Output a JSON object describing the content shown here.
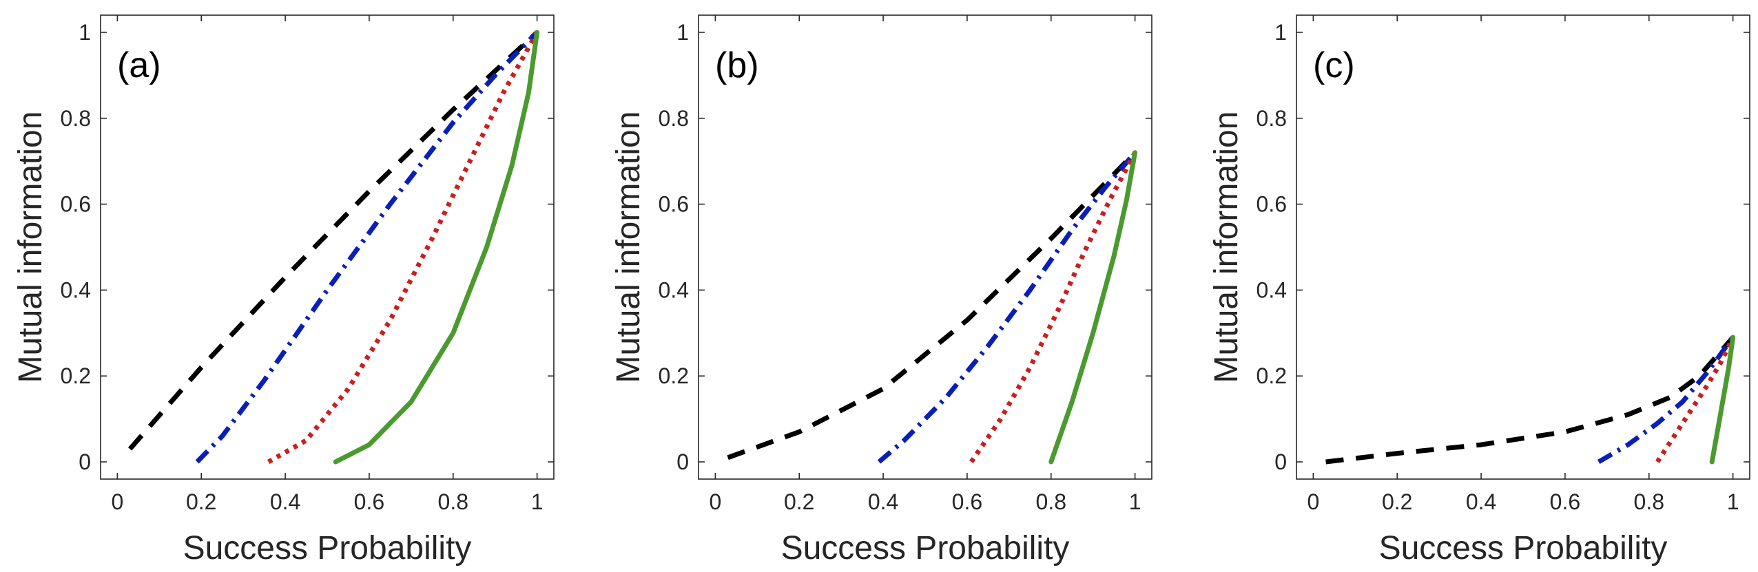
{
  "chart_data": [
    {
      "type": "line",
      "panel_label": "(a)",
      "xlabel": "Success Probability",
      "ylabel": "Mutual information",
      "xlim": [
        -0.04,
        1.04
      ],
      "ylim": [
        -0.04,
        1.04
      ],
      "xticks": [
        0,
        0.2,
        0.4,
        0.6,
        0.8,
        1
      ],
      "xtick_labels": [
        "0",
        "0.2",
        "0.4",
        "0.6",
        "0.8",
        "1"
      ],
      "yticks": [
        0,
        0.2,
        0.4,
        0.6,
        0.8,
        1
      ],
      "ytick_labels": [
        "0",
        "0.2",
        "0.4",
        "0.6",
        "0.8",
        "1"
      ],
      "series": [
        {
          "name": "black-dashed",
          "color": "#000000",
          "style": "dashed",
          "x": [
            0.03,
            0.2,
            0.4,
            0.6,
            0.8,
            1.0
          ],
          "y": [
            0.03,
            0.22,
            0.43,
            0.63,
            0.82,
            1.0
          ]
        },
        {
          "name": "blue-dash-dot",
          "color": "#0a1fb8",
          "style": "dashdot",
          "x": [
            0.19,
            0.25,
            0.35,
            0.5,
            0.65,
            0.8,
            0.9,
            1.0
          ],
          "y": [
            0.0,
            0.06,
            0.19,
            0.4,
            0.6,
            0.79,
            0.9,
            1.0
          ]
        },
        {
          "name": "red-dotted",
          "color": "#c91f1f",
          "style": "dotted",
          "x": [
            0.36,
            0.45,
            0.55,
            0.65,
            0.75,
            0.85,
            0.92,
            1.0
          ],
          "y": [
            0.0,
            0.05,
            0.17,
            0.33,
            0.52,
            0.72,
            0.86,
            1.0
          ]
        },
        {
          "name": "green-solid",
          "color": "#4a9a2f",
          "style": "solid",
          "x": [
            0.52,
            0.6,
            0.7,
            0.8,
            0.88,
            0.94,
            0.98,
            1.0
          ],
          "y": [
            0.0,
            0.04,
            0.14,
            0.3,
            0.5,
            0.69,
            0.86,
            1.0
          ]
        }
      ]
    },
    {
      "type": "line",
      "panel_label": "(b)",
      "xlabel": "Success Probability",
      "ylabel": "Mutual information",
      "xlim": [
        -0.04,
        1.04
      ],
      "ylim": [
        -0.04,
        1.04
      ],
      "xticks": [
        0,
        0.2,
        0.4,
        0.6,
        0.8,
        1
      ],
      "xtick_labels": [
        "0",
        "0.2",
        "0.4",
        "0.6",
        "0.8",
        "1"
      ],
      "yticks": [
        0,
        0.2,
        0.4,
        0.6,
        0.8,
        1
      ],
      "ytick_labels": [
        "0",
        "0.2",
        "0.4",
        "0.6",
        "0.8",
        "1"
      ],
      "series": [
        {
          "name": "black-dashed",
          "color": "#000000",
          "style": "dashed",
          "x": [
            0.03,
            0.2,
            0.4,
            0.6,
            0.8,
            0.9,
            1.0
          ],
          "y": [
            0.01,
            0.07,
            0.17,
            0.33,
            0.52,
            0.62,
            0.72
          ]
        },
        {
          "name": "blue-dash-dot",
          "color": "#0a1fb8",
          "style": "dashdot",
          "x": [
            0.39,
            0.45,
            0.55,
            0.65,
            0.75,
            0.85,
            0.93,
            1.0
          ],
          "y": [
            0.0,
            0.05,
            0.15,
            0.27,
            0.4,
            0.54,
            0.64,
            0.72
          ]
        },
        {
          "name": "red-dotted",
          "color": "#c91f1f",
          "style": "dotted",
          "x": [
            0.61,
            0.68,
            0.75,
            0.82,
            0.88,
            0.94,
            1.0
          ],
          "y": [
            0.0,
            0.1,
            0.22,
            0.36,
            0.49,
            0.61,
            0.72
          ]
        },
        {
          "name": "green-solid",
          "color": "#4a9a2f",
          "style": "solid",
          "x": [
            0.8,
            0.85,
            0.9,
            0.95,
            0.98,
            1.0
          ],
          "y": [
            0.0,
            0.14,
            0.3,
            0.48,
            0.61,
            0.72
          ]
        }
      ]
    },
    {
      "type": "line",
      "panel_label": "(c)",
      "xlabel": "Success Probability",
      "ylabel": "Mutual information",
      "xlim": [
        -0.04,
        1.04
      ],
      "ylim": [
        -0.04,
        1.04
      ],
      "xticks": [
        0,
        0.2,
        0.4,
        0.6,
        0.8,
        1
      ],
      "xtick_labels": [
        "0",
        "0.2",
        "0.4",
        "0.6",
        "0.8",
        "1"
      ],
      "yticks": [
        0,
        0.2,
        0.4,
        0.6,
        0.8,
        1
      ],
      "ytick_labels": [
        "0",
        "0.2",
        "0.4",
        "0.6",
        "0.8",
        "1"
      ],
      "series": [
        {
          "name": "black-dashed",
          "color": "#000000",
          "style": "dashed",
          "x": [
            0.03,
            0.2,
            0.4,
            0.6,
            0.75,
            0.85,
            0.92,
            1.0
          ],
          "y": [
            0.0,
            0.02,
            0.04,
            0.07,
            0.11,
            0.15,
            0.2,
            0.29
          ]
        },
        {
          "name": "blue-dash-dot",
          "color": "#0a1fb8",
          "style": "dashdot",
          "x": [
            0.68,
            0.75,
            0.82,
            0.88,
            0.94,
            1.0
          ],
          "y": [
            0.0,
            0.04,
            0.09,
            0.14,
            0.21,
            0.29
          ]
        },
        {
          "name": "red-dotted",
          "color": "#c91f1f",
          "style": "dotted",
          "x": [
            0.82,
            0.86,
            0.9,
            0.94,
            0.97,
            1.0
          ],
          "y": [
            0.0,
            0.06,
            0.12,
            0.18,
            0.23,
            0.29
          ]
        },
        {
          "name": "green-solid",
          "color": "#4a9a2f",
          "style": "solid",
          "x": [
            0.95,
            0.97,
            0.99,
            1.0
          ],
          "y": [
            0.0,
            0.11,
            0.22,
            0.29
          ]
        }
      ]
    }
  ]
}
